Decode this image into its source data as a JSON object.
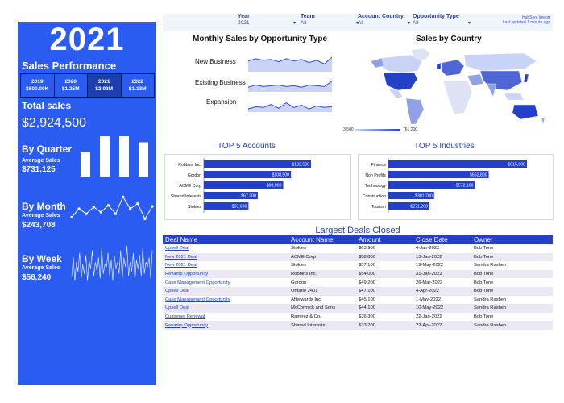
{
  "sidebar": {
    "year": "2021",
    "sales_performance_label": "Sales Performance",
    "year_boxes": [
      {
        "year": "2019",
        "value": "$600.00K"
      },
      {
        "year": "2020",
        "value": "$1.25M"
      },
      {
        "year": "2021",
        "value": "$2.92M"
      },
      {
        "year": "2022",
        "value": "$1.13M"
      }
    ],
    "total_label": "Total sales",
    "total_value": "$2,924,500",
    "quarter": {
      "title": "By Quarter",
      "avg_label": "Average Sales",
      "avg_value": "$731,125",
      "values": [
        0.6,
        1.0,
        1.0,
        0.85
      ]
    },
    "month": {
      "title": "By Month",
      "avg_label": "Average Sales",
      "avg_value": "$243,708",
      "values": [
        0.3,
        0.55,
        0.4,
        0.6,
        0.45,
        0.65,
        0.4,
        0.9,
        0.55,
        0.7,
        0.25,
        0.62
      ]
    },
    "week": {
      "title": "By Week",
      "avg_label": "Average Sales",
      "avg_value": "$56,240",
      "values": [
        0.3,
        0.7,
        0.2,
        0.6,
        0.4,
        0.8,
        0.25,
        0.55,
        0.35,
        0.75,
        0.2,
        0.65,
        0.45,
        0.85,
        0.3,
        0.6,
        0.4,
        0.7,
        0.25,
        0.9,
        0.35,
        0.55,
        0.5,
        0.8,
        0.3,
        0.65,
        0.2,
        0.75,
        0.45,
        0.6,
        0.35,
        0.85,
        0.25,
        0.7,
        0.5,
        0.95,
        0.3,
        0.6,
        0.4,
        0.8,
        0.2,
        0.65,
        0.45,
        0.75,
        0.3,
        0.9,
        0.35,
        0.6,
        0.5,
        0.7,
        0.25,
        0.85
      ]
    }
  },
  "filters": [
    {
      "label": "Year",
      "value": "2021"
    },
    {
      "label": "Team",
      "value": "All"
    },
    {
      "label": "Account Country",
      "value": "All"
    },
    {
      "label": "Opportunity Type",
      "value": "All"
    }
  ],
  "hubspot": {
    "line1": "HubSpot Import",
    "line2": "Last updated 1 minute ago"
  },
  "monthly": {
    "title": "Monthly Sales by Opportunity Type",
    "types": [
      "New Business",
      "Existing Business",
      "Expansion"
    ],
    "series": [
      [
        0.7,
        0.85,
        0.75,
        0.8,
        0.65,
        0.85,
        0.7,
        0.8,
        0.6,
        0.75,
        0.5,
        0.95
      ],
      [
        0.3,
        0.45,
        0.35,
        0.4,
        0.45,
        0.35,
        0.4,
        0.3,
        0.45,
        0.4,
        0.35,
        0.7
      ],
      [
        0.2,
        0.35,
        0.3,
        0.5,
        0.25,
        0.6,
        0.3,
        0.45,
        0.2,
        0.4,
        0.3,
        0.35
      ]
    ]
  },
  "map": {
    "title": "Sales by Country",
    "legend_min": "3,500",
    "legend_max": "761,200"
  },
  "top_accounts": {
    "title": "TOP 5 Accounts",
    "items": [
      {
        "name": "Robbins Inc.",
        "value": 133500,
        "label": "$133,500"
      },
      {
        "name": "Gordon",
        "value": 108500,
        "label": "$108,500"
      },
      {
        "name": "ACME Corp",
        "value": 98900,
        "label": "$98,900"
      },
      {
        "name": "Shared Interests",
        "value": 67200,
        "label": "$67,200"
      },
      {
        "name": "Stokies",
        "value": 55600,
        "label": "$55,600"
      }
    ]
  },
  "top_industries": {
    "title": "TOP 5 Industries",
    "items": [
      {
        "name": "Finance",
        "value": 915000,
        "label": "$915,000"
      },
      {
        "name": "Non Profits",
        "value": 662800,
        "label": "$662,800"
      },
      {
        "name": "Technology",
        "value": 572100,
        "label": "$572,100"
      },
      {
        "name": "Construction",
        "value": 301700,
        "label": "$301,700"
      },
      {
        "name": "Tourism",
        "value": 271200,
        "label": "$271,200"
      }
    ]
  },
  "deals": {
    "title": "Largest Deals Closed",
    "columns": [
      "Deal Name",
      "Account Name",
      "Amount",
      "Close Date",
      "Owner"
    ],
    "rows": [
      [
        "Upsell Deal",
        "Stokies",
        "$63,900",
        "4-Jan-2022",
        "Bob Tone"
      ],
      [
        "New 2021 Deal",
        "ACME Corp",
        "$58,800",
        "13-Jan-2022",
        "Bob Tone"
      ],
      [
        "New 2021 Deal",
        "Stokies",
        "$57,100",
        "19-May-2022",
        "Sandra Rashen"
      ],
      [
        "Revamp Opportunity",
        "Robbins Inc.",
        "$54,000",
        "31-Jan-2022",
        "Bob Tone"
      ],
      [
        "Case Management Opportunity",
        "Gordon",
        "$49,200",
        "26-Mar-2022",
        "Bob Tone"
      ],
      [
        "Upsell Deal",
        "Ontario 2401",
        "$47,100",
        "4-Apr-2022",
        "Bob Tone"
      ],
      [
        "Case Management Opportunity",
        "Afterwards Inc.",
        "$45,100",
        "1-May-2022",
        "Sandra Rashen"
      ],
      [
        "Upsell Deal",
        "McCormick and Sons",
        "$44,100",
        "10-May-2022",
        "Sandra Rashen"
      ],
      [
        "Customer Renewal",
        "Ramirez & Co.",
        "$36,300",
        "22-Jan-2022",
        "Bob Tone"
      ],
      [
        "Revamp Opportunity",
        "Shared Interests",
        "$33,700",
        "22-Apr-2022",
        "Sandra Rashen"
      ]
    ]
  },
  "colors": {
    "accent": "#2b5cf2",
    "bar": "#2440c8",
    "bar_light": "#8fa2e6",
    "row_alt": "#ebe8f3"
  }
}
